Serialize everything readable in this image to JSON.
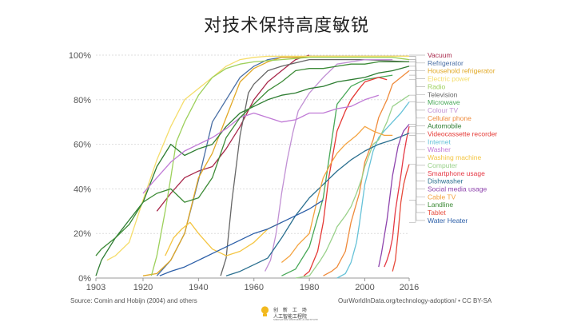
{
  "slide": {
    "title": "对技术保持高度敏锐",
    "source": "Source: Comin and Hobijn (2004) and others",
    "credit": "OurWorldInData.org/technology-adoption/ • CC BY-SA"
  },
  "logo": {
    "name": "创 新 工 场",
    "subtitle": "人工智能工程院",
    "tagline": "SINOVATION VENTURES AI INSTITUTE"
  },
  "chart_data": {
    "type": "line",
    "title": "",
    "xlabel": "",
    "ylabel": "",
    "xlim": [
      1903,
      2016
    ],
    "ylim": [
      0,
      100
    ],
    "x_ticks": [
      1903,
      1920,
      1940,
      1960,
      1980,
      2000,
      2016
    ],
    "y_ticks": [
      0,
      20,
      40,
      60,
      80,
      100
    ],
    "y_tick_labels": [
      "0%",
      "20%",
      "40%",
      "60%",
      "80%",
      "100%"
    ],
    "grid": true,
    "legend_position": "right",
    "series": [
      {
        "name": "Vacuum",
        "color": "#a8274a",
        "x": [
          1925,
          1930,
          1935,
          1940,
          1945,
          1950,
          1955,
          1960,
          1965,
          1970,
          1975,
          1980
        ],
        "values": [
          30,
          38,
          45,
          48,
          50,
          58,
          68,
          80,
          88,
          93,
          98,
          100
        ]
      },
      {
        "name": "Refrigerator",
        "color": "#4a6fa5",
        "x": [
          1925,
          1930,
          1935,
          1940,
          1945,
          1950,
          1955,
          1960,
          1965,
          1970,
          1975,
          1980,
          1990,
          2000,
          2010,
          2016
        ],
        "values": [
          1,
          8,
          20,
          44,
          70,
          80,
          90,
          95,
          98,
          99,
          99,
          99.5,
          99.5,
          99.5,
          99.5,
          99.5
        ]
      },
      {
        "name": "Household refrigerator",
        "color": "#e1a826",
        "x": [
          1920,
          1925,
          1930,
          1935,
          1940,
          1945,
          1950,
          1955,
          1960,
          1965,
          1970,
          1975,
          1980,
          2000,
          2016
        ],
        "values": [
          1,
          2,
          8,
          20,
          45,
          56,
          72,
          88,
          94,
          97,
          99,
          99,
          99.5,
          99.5,
          99.5
        ]
      },
      {
        "name": "Electric power",
        "color": "#f5dd6b",
        "x": [
          1907,
          1910,
          1915,
          1920,
          1925,
          1930,
          1935,
          1940,
          1945,
          1950,
          1955,
          1960,
          1965,
          1970,
          1980,
          2000,
          2016
        ],
        "values": [
          8,
          10,
          16,
          35,
          53,
          68,
          80,
          85,
          90,
          95,
          98,
          99,
          99.5,
          99.5,
          99.5,
          99.5,
          99.5
        ]
      },
      {
        "name": "Radio",
        "color": "#9dd05b",
        "x": [
          1923,
          1925,
          1928,
          1930,
          1932,
          1935,
          1940,
          1945,
          1950,
          1955,
          1960,
          1970,
          1980,
          2000,
          2010,
          2016
        ],
        "values": [
          1,
          10,
          30,
          45,
          61,
          70,
          82,
          90,
          94,
          96,
          97,
          98,
          99,
          99,
          99,
          98
        ]
      },
      {
        "name": "Television",
        "color": "#666666",
        "x": [
          1948,
          1950,
          1952,
          1955,
          1958,
          1960,
          1965,
          1970,
          1980,
          2000,
          2016
        ],
        "values": [
          1,
          9,
          34,
          64,
          83,
          87,
          93,
          95,
          98,
          98,
          97
        ]
      },
      {
        "name": "Microwave",
        "color": "#48a858",
        "x": [
          1970,
          1975,
          1980,
          1985,
          1990,
          1995,
          2000,
          2005,
          2010
        ],
        "values": [
          1,
          4,
          14,
          36,
          78,
          86,
          89,
          90,
          91
        ]
      },
      {
        "name": "Colour TV",
        "color": "#c190d4",
        "x": [
          1964,
          1966,
          1968,
          1970,
          1972,
          1974,
          1976,
          1980,
          1985,
          1990,
          2000,
          2010
        ],
        "values": [
          3,
          8,
          20,
          38,
          53,
          65,
          75,
          83,
          90,
          96,
          98,
          98
        ]
      },
      {
        "name": "Cellular phone",
        "color": "#ef8a3a",
        "x": [
          1985,
          1988,
          1990,
          1993,
          1995,
          1998,
          2000,
          2003,
          2005,
          2008,
          2010,
          2013,
          2016
        ],
        "values": [
          1,
          3,
          5,
          12,
          25,
          38,
          52,
          62,
          72,
          80,
          87,
          90,
          93
        ]
      },
      {
        "name": "Automobile",
        "color": "#2e7d32",
        "x": [
          1903,
          1905,
          1910,
          1915,
          1920,
          1925,
          1930,
          1935,
          1940,
          1945,
          1950,
          1955,
          1960,
          1965,
          1970,
          1975,
          1980,
          1985,
          1990,
          1995,
          2000,
          2005,
          2010,
          2013,
          2016
        ],
        "values": [
          1,
          8,
          18,
          26,
          34,
          50,
          60,
          55,
          58,
          60,
          68,
          74,
          77,
          80,
          82,
          83,
          85,
          86,
          88,
          89,
          90,
          92,
          93,
          94,
          95
        ]
      },
      {
        "name": "Videocassette recorder",
        "color": "#e53935",
        "x": [
          1978,
          1980,
          1983,
          1985,
          1987,
          1990,
          1993,
          1995,
          1998,
          2000,
          2005,
          2008
        ],
        "values": [
          1,
          3,
          12,
          25,
          45,
          66,
          75,
          80,
          85,
          88,
          90,
          89
        ]
      },
      {
        "name": "Internet",
        "color": "#66c2d8",
        "x": [
          1990,
          1993,
          1995,
          1997,
          1998,
          2000,
          2003,
          2005,
          2007,
          2010,
          2013,
          2016
        ],
        "values": [
          0,
          2,
          7,
          16,
          24,
          42,
          57,
          63,
          66,
          70,
          74,
          79
        ]
      },
      {
        "name": "Washer",
        "color": "#c07ad6",
        "x": [
          1920,
          1925,
          1930,
          1935,
          1940,
          1945,
          1950,
          1955,
          1960,
          1965,
          1970,
          1975,
          1980,
          1985,
          1990,
          1995,
          2000,
          2005
        ],
        "values": [
          38,
          45,
          52,
          57,
          60,
          63,
          67,
          72,
          74,
          72,
          70,
          71,
          74,
          74,
          76,
          77,
          80,
          82
        ]
      },
      {
        "name": "Washing machine",
        "color": "#f4c542",
        "x": [
          1928,
          1931,
          1934,
          1937,
          1940,
          1945,
          1950,
          1955,
          1960,
          1965,
          1970
        ],
        "values": [
          10,
          18,
          22,
          25,
          20,
          13,
          10,
          12,
          16,
          22,
          25
        ]
      },
      {
        "name": "Computer",
        "color": "#9ad18b",
        "x": [
          1975,
          1980,
          1984,
          1986,
          1989,
          1990,
          1993,
          1995,
          1997,
          1999,
          2000,
          2003,
          2005,
          2008,
          2010,
          2016
        ],
        "values": [
          0,
          1,
          8,
          12,
          20,
          23,
          28,
          32,
          38,
          45,
          50,
          60,
          62,
          70,
          77,
          82
        ]
      },
      {
        "name": "Smartphone usage",
        "color": "#e53945",
        "x": [
          2007,
          2008,
          2009,
          2010,
          2011,
          2012,
          2013,
          2014,
          2015,
          2016
        ],
        "values": [
          5,
          8,
          12,
          18,
          30,
          38,
          46,
          55,
          62,
          68
        ]
      },
      {
        "name": "Dishwasher",
        "color": "#2a6f8f",
        "x": [
          1950,
          1955,
          1960,
          1965,
          1970,
          1975,
          1980,
          1985,
          1990,
          1995,
          2000,
          2005,
          2010,
          2016
        ],
        "values": [
          1,
          3,
          6,
          9,
          18,
          28,
          36,
          42,
          48,
          53,
          57,
          60,
          62,
          65
        ]
      },
      {
        "name": "Social media usage",
        "color": "#8e44ad",
        "x": [
          2005,
          2006,
          2008,
          2010,
          2012,
          2013,
          2014,
          2016
        ],
        "values": [
          5,
          11,
          26,
          46,
          59,
          63,
          66,
          69
        ]
      },
      {
        "name": "Cable TV",
        "color": "#f4a340",
        "x": [
          1970,
          1973,
          1976,
          1980,
          1983,
          1985,
          1988,
          1990,
          1993,
          1995,
          1997,
          2000,
          2003,
          2005,
          2007,
          2010
        ],
        "values": [
          7,
          10,
          15,
          20,
          36,
          45,
          52,
          56,
          60,
          62,
          64,
          68,
          66,
          65,
          64,
          64
        ]
      },
      {
        "name": "Landline",
        "color": "#3d8b37",
        "x": [
          1903,
          1905,
          1910,
          1915,
          1920,
          1925,
          1930,
          1935,
          1940,
          1945,
          1950,
          1955,
          1960,
          1965,
          1970,
          1975,
          1980,
          1985,
          1990,
          1995,
          2000,
          2005,
          2010,
          2016
        ],
        "values": [
          10,
          13,
          18,
          24,
          34,
          38,
          40,
          34,
          36,
          45,
          63,
          72,
          78,
          84,
          88,
          93,
          94,
          94,
          95,
          96,
          96,
          97,
          97,
          97
        ]
      },
      {
        "name": "Tablet",
        "color": "#e74c3c",
        "x": [
          2010,
          2011,
          2012,
          2013,
          2014,
          2015,
          2016
        ],
        "values": [
          3,
          8,
          20,
          34,
          42,
          47,
          51
        ]
      },
      {
        "name": "Water Heater",
        "color": "#2c5fa8",
        "x": [
          1926,
          1930,
          1935,
          1940,
          1945,
          1950,
          1955,
          1960,
          1965,
          1970,
          1975,
          1980,
          1985
        ],
        "values": [
          1,
          3,
          5,
          8,
          11,
          14,
          17,
          20,
          22,
          25,
          28,
          31,
          35
        ]
      }
    ]
  }
}
